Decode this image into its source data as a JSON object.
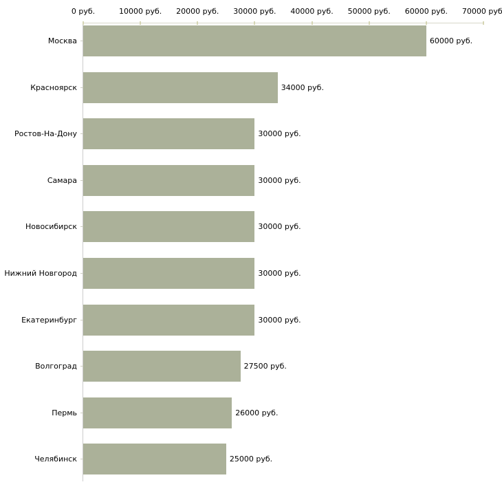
{
  "chart_data": {
    "type": "bar",
    "orientation": "horizontal",
    "title": "",
    "categories": [
      "Москва",
      "Красноярск",
      "Ростов-На-Дону",
      "Самара",
      "Новосибирск",
      "Нижний Новгород",
      "Екатеринбург",
      "Волгоград",
      "Пермь",
      "Челябинск"
    ],
    "values": [
      60000,
      34000,
      30000,
      30000,
      30000,
      30000,
      30000,
      27500,
      26000,
      25000
    ],
    "value_labels": [
      "60000 руб.",
      "34000 руб.",
      "30000 руб.",
      "30000 руб.",
      "30000 руб.",
      "30000 руб.",
      "30000 руб.",
      "27500 руб.",
      "26000 руб.",
      "25000 руб."
    ],
    "x_axis": {
      "position": "top",
      "tick_values": [
        0,
        10000,
        20000,
        30000,
        40000,
        50000,
        60000,
        70000
      ],
      "tick_labels": [
        "0 руб.",
        "10000 руб.",
        "20000 руб.",
        "30000 руб.",
        "40000 руб.",
        "50000 руб.",
        "60000 руб.",
        "70000 руб."
      ],
      "range": [
        0,
        70000
      ]
    },
    "ylabel": "",
    "xlabel": "",
    "grid": false,
    "legend": false,
    "colors": {
      "bar_fill": "#abb199",
      "x_axis_line": "#d6d6c8",
      "x_tick_mark": "#d6d6b4",
      "y_axis_line": "#cccccc",
      "category_tick": "#ccccc0",
      "text": "#000000",
      "background": "#ffffff"
    }
  }
}
